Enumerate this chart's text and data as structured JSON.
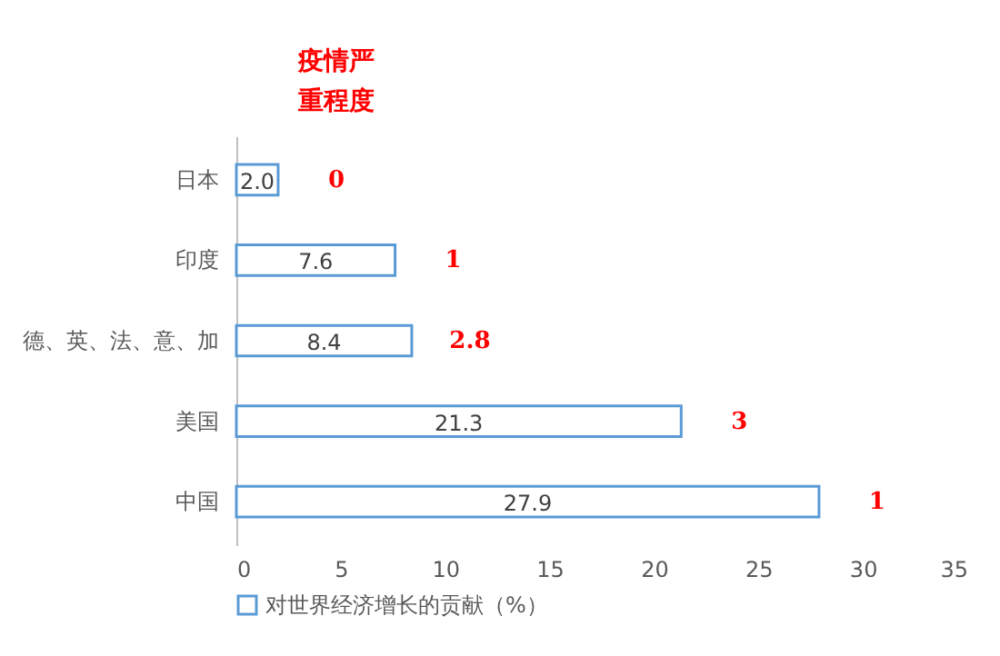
{
  "chart_data": {
    "type": "bar",
    "orientation": "horizontal",
    "categories": [
      "日本",
      "印度",
      "德、英、法、意、加",
      "美国",
      "中国"
    ],
    "series": [
      {
        "name": "对世界经济增长的贡献（%）",
        "color": "#5b9bd5",
        "values": [
          2.0,
          7.6,
          8.4,
          21.3,
          27.9
        ],
        "value_labels": [
          "2.0",
          "7.6",
          "8.4",
          "21.3",
          "27.9"
        ]
      }
    ],
    "xlim": [
      0,
      35
    ],
    "xticks": [
      0,
      5,
      10,
      15,
      20,
      25,
      30,
      35
    ],
    "grid": false,
    "legend": "bottom",
    "annotations": [
      "疫情严重程度",
      "0",
      "1",
      "2.8",
      "3",
      "1"
    ]
  }
}
